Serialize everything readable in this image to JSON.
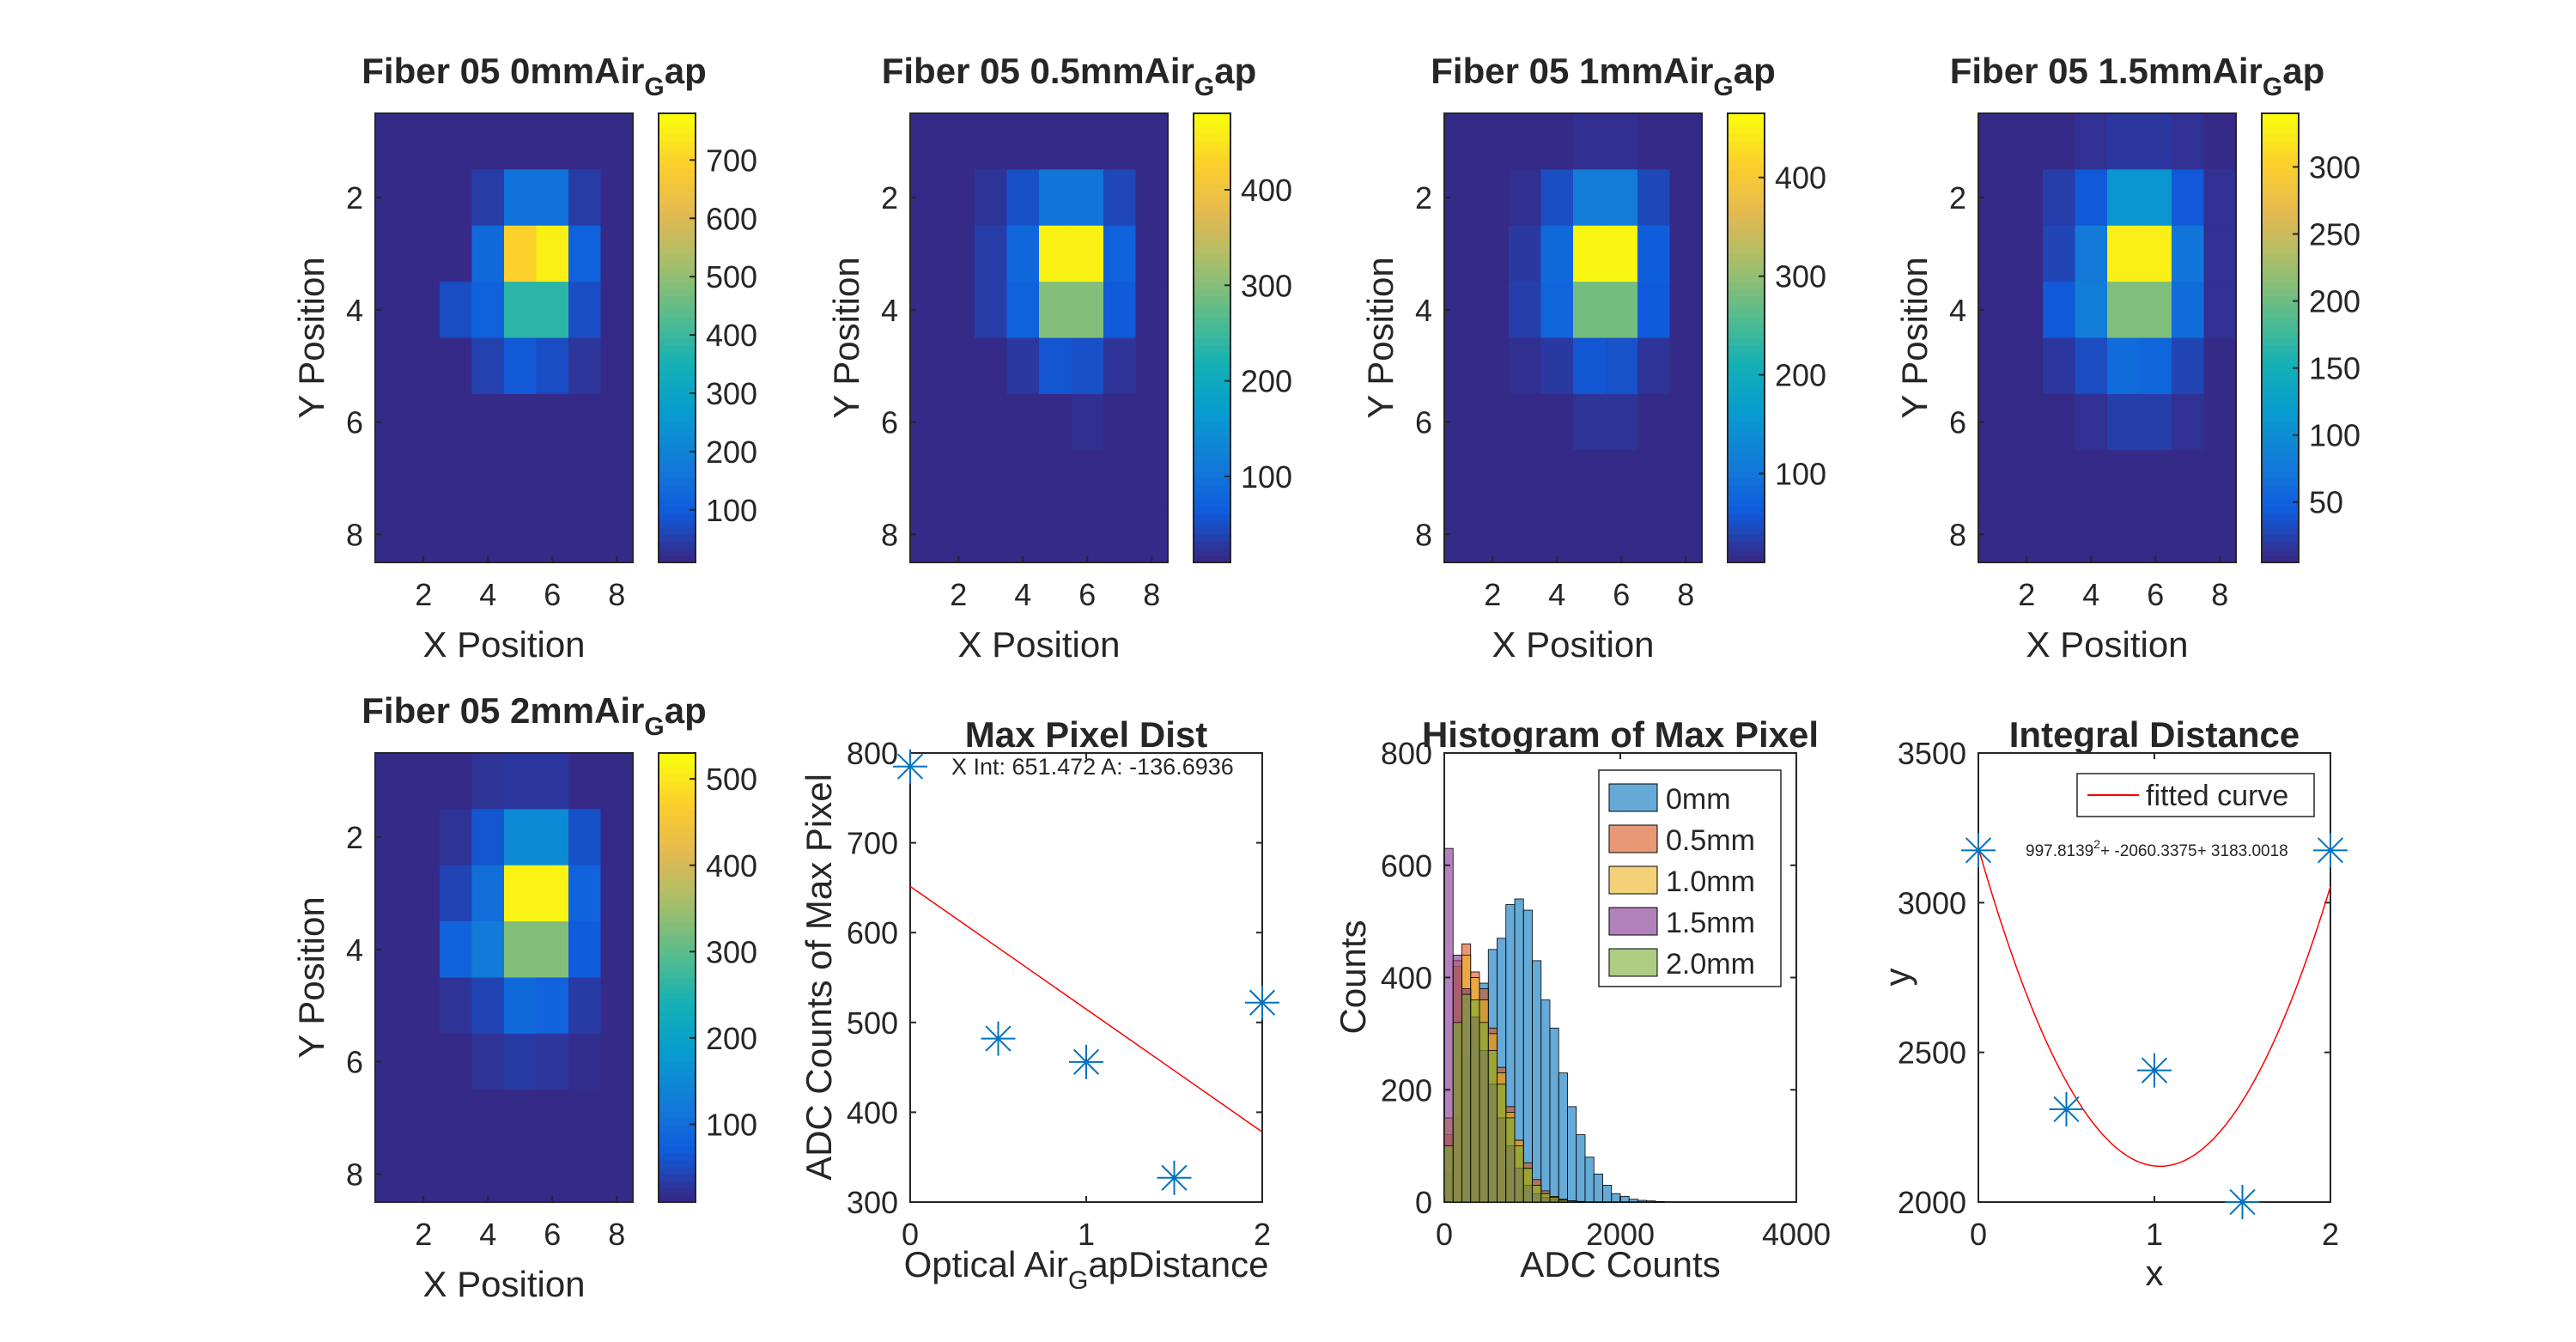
{
  "figure": {
    "heatmaps": [
      {
        "title_main": "Fiber 05 0mmAir",
        "title_sub": "G",
        "title_tail": "ap",
        "xlabel": "X Position",
        "ylabel": "Y Position",
        "xticks": [
          "2",
          "4",
          "6",
          "8"
        ],
        "yticks": [
          "2",
          "4",
          "6",
          "8"
        ],
        "cbar_min": 10,
        "cbar_max": 780,
        "cbar_ticks": [
          100,
          200,
          300,
          400,
          500,
          600,
          700
        ],
        "cbar_tick_labels": [
          "100",
          "200",
          "300",
          "400",
          "500",
          "600",
          "700"
        ],
        "grid": [
          [
            10,
            10,
            10,
            10,
            10,
            10,
            10,
            10
          ],
          [
            10,
            10,
            10,
            40,
            150,
            150,
            40,
            10
          ],
          [
            10,
            10,
            10,
            130,
            700,
            760,
            110,
            10
          ],
          [
            10,
            10,
            70,
            110,
            380,
            380,
            70,
            10
          ],
          [
            10,
            10,
            10,
            50,
            90,
            70,
            30,
            10
          ],
          [
            10,
            10,
            10,
            10,
            10,
            10,
            10,
            10
          ],
          [
            10,
            10,
            10,
            10,
            10,
            10,
            10,
            10
          ],
          [
            10,
            10,
            10,
            10,
            10,
            10,
            10,
            10
          ]
        ]
      },
      {
        "title_main": "Fiber 05 0.5mmAir",
        "title_sub": "G",
        "title_tail": "ap",
        "xlabel": "X Position",
        "ylabel": "Y Position",
        "xticks": [
          "2",
          "4",
          "6",
          "8"
        ],
        "yticks": [
          "2",
          "4",
          "6",
          "8"
        ],
        "cbar_min": 10,
        "cbar_max": 480,
        "cbar_ticks": [
          100,
          200,
          300,
          400
        ],
        "cbar_tick_labels": [
          "100",
          "200",
          "300",
          "400"
        ],
        "grid": [
          [
            10,
            10,
            10,
            10,
            10,
            10,
            10,
            10
          ],
          [
            10,
            10,
            20,
            50,
            100,
            100,
            40,
            10
          ],
          [
            10,
            10,
            30,
            80,
            470,
            470,
            70,
            10
          ],
          [
            10,
            10,
            30,
            70,
            300,
            300,
            60,
            10
          ],
          [
            10,
            10,
            10,
            25,
            55,
            50,
            20,
            10
          ],
          [
            10,
            10,
            10,
            10,
            10,
            15,
            10,
            10
          ],
          [
            10,
            10,
            10,
            10,
            10,
            10,
            10,
            10
          ],
          [
            10,
            10,
            10,
            10,
            10,
            10,
            10,
            10
          ]
        ]
      },
      {
        "title_main": "Fiber 05 1mmAir",
        "title_sub": "G",
        "title_tail": "ap",
        "xlabel": "X Position",
        "ylabel": "Y Position",
        "xticks": [
          "2",
          "4",
          "6",
          "8"
        ],
        "yticks": [
          "2",
          "4",
          "6",
          "8"
        ],
        "cbar_min": 10,
        "cbar_max": 465,
        "cbar_ticks": [
          100,
          200,
          300,
          400
        ],
        "cbar_tick_labels": [
          "100",
          "200",
          "300",
          "400"
        ],
        "grid": [
          [
            10,
            10,
            10,
            10,
            15,
            15,
            10,
            10
          ],
          [
            10,
            10,
            15,
            45,
            110,
            110,
            40,
            10
          ],
          [
            10,
            10,
            25,
            80,
            460,
            460,
            65,
            10
          ],
          [
            10,
            10,
            30,
            75,
            280,
            280,
            60,
            10
          ],
          [
            10,
            10,
            15,
            25,
            55,
            50,
            20,
            10
          ],
          [
            10,
            10,
            10,
            10,
            20,
            20,
            10,
            10
          ],
          [
            10,
            10,
            10,
            10,
            10,
            10,
            10,
            10
          ],
          [
            10,
            10,
            10,
            10,
            10,
            10,
            10,
            10
          ]
        ]
      },
      {
        "title_main": "Fiber 05 1.5mmAir",
        "title_sub": "G",
        "title_tail": "ap",
        "xlabel": "X Position",
        "ylabel": "Y Position",
        "xticks": [
          "2",
          "4",
          "6",
          "8"
        ],
        "yticks": [
          "2",
          "4",
          "6",
          "8"
        ],
        "cbar_min": 5,
        "cbar_max": 340,
        "cbar_ticks": [
          50,
          100,
          150,
          200,
          250,
          300
        ],
        "cbar_tick_labels": [
          "50",
          "100",
          "150",
          "200",
          "250",
          "300"
        ],
        "grid": [
          [
            5,
            5,
            5,
            10,
            15,
            15,
            10,
            5
          ],
          [
            5,
            5,
            20,
            40,
            110,
            110,
            40,
            10
          ],
          [
            5,
            5,
            25,
            75,
            330,
            330,
            70,
            10
          ],
          [
            5,
            5,
            40,
            80,
            210,
            210,
            60,
            10
          ],
          [
            5,
            5,
            15,
            30,
            60,
            55,
            25,
            5
          ],
          [
            5,
            5,
            5,
            10,
            20,
            20,
            10,
            5
          ],
          [
            5,
            5,
            5,
            5,
            5,
            5,
            5,
            5
          ],
          [
            5,
            5,
            5,
            5,
            5,
            5,
            5,
            5
          ]
        ]
      },
      {
        "title_main": "Fiber 05 2mmAir",
        "title_sub": "G",
        "title_tail": "ap",
        "xlabel": "X Position",
        "ylabel": "Y Position",
        "xticks": [
          "2",
          "4",
          "6",
          "8"
        ],
        "yticks": [
          "2",
          "4",
          "6",
          "8"
        ],
        "cbar_min": 10,
        "cbar_max": 530,
        "cbar_ticks": [
          100,
          200,
          300,
          400,
          500
        ],
        "cbar_tick_labels": [
          "100",
          "200",
          "300",
          "400",
          "500"
        ],
        "grid": [
          [
            10,
            10,
            10,
            20,
            25,
            25,
            10,
            10
          ],
          [
            10,
            10,
            20,
            60,
            150,
            150,
            55,
            10
          ],
          [
            10,
            10,
            40,
            100,
            520,
            520,
            80,
            10
          ],
          [
            10,
            10,
            80,
            120,
            330,
            330,
            70,
            10
          ],
          [
            10,
            10,
            20,
            40,
            90,
            80,
            30,
            10
          ],
          [
            10,
            10,
            10,
            20,
            30,
            25,
            15,
            10
          ],
          [
            10,
            10,
            10,
            10,
            10,
            10,
            10,
            10
          ],
          [
            10,
            10,
            10,
            10,
            10,
            10,
            10,
            10
          ]
        ]
      }
    ],
    "maxpix": {
      "title": "Max Pixel Dist",
      "xlabel_main": "Optical Air",
      "xlabel_sub": "G",
      "xlabel_tail": "apDistance",
      "ylabel": "ADC Counts of Max Pixel",
      "annotation": "X Int: 651.472 A: -136.6936",
      "xticks": [
        "0",
        "1",
        "2"
      ],
      "yticks": [
        "300",
        "400",
        "500",
        "600",
        "700",
        "800"
      ]
    },
    "hist": {
      "title": "Histogram of Max Pixel",
      "xlabel": "ADC Counts",
      "ylabel": "Counts",
      "xticks": [
        "0",
        "2000",
        "4000"
      ],
      "yticks": [
        "0",
        "200",
        "400",
        "600",
        "800"
      ],
      "legend": [
        "0mm",
        "0.5mm",
        "1.0mm",
        "1.5mm",
        "2.0mm"
      ]
    },
    "integral": {
      "title": "Integral Distance",
      "xlabel": "x",
      "ylabel": "y",
      "legend_label": "fitted curve",
      "equation": "997.8139",
      "equation_sup": "2",
      "equation_tail": "+ -2060.3375+ 3183.0018",
      "xticks": [
        "0",
        "1",
        "2"
      ],
      "yticks": [
        "2000",
        "2500",
        "3000",
        "3500"
      ]
    }
  },
  "colors": {
    "series_blue": "#0072bd",
    "fit_red": "#ff0000",
    "hist": [
      "#0072bd",
      "#d95319",
      "#edb120",
      "#7e2f8e",
      "#77ac30"
    ]
  },
  "chart_data": [
    {
      "type": "scatter",
      "title": "Max Pixel Dist",
      "xlabel": "Optical AirGapDistance",
      "ylabel": "ADC Counts of Max Pixel",
      "xlim": [
        0,
        2
      ],
      "ylim": [
        300,
        800
      ],
      "x": [
        0,
        0.5,
        1,
        1.5,
        2
      ],
      "y": [
        785,
        482,
        456,
        327,
        522
      ],
      "fit_line": {
        "intercept": 651.472,
        "slope": -136.6936
      },
      "annotation": "X Int: 651.472 A: -136.6936"
    },
    {
      "type": "bar",
      "title": "Histogram of Max Pixel",
      "xlabel": "ADC Counts",
      "ylabel": "Counts",
      "xlim": [
        0,
        4000
      ],
      "ylim": [
        0,
        800
      ],
      "bin_width": 100,
      "bin_start": 0,
      "series": [
        {
          "name": "0mm",
          "values": [
            50,
            150,
            260,
            330,
            390,
            450,
            470,
            530,
            540,
            520,
            430,
            360,
            310,
            230,
            170,
            120,
            80,
            50,
            30,
            15,
            10,
            5,
            3,
            2,
            1
          ]
        },
        {
          "name": "0.5mm",
          "values": [
            120,
            420,
            460,
            410,
            380,
            310,
            240,
            170,
            110,
            70,
            40,
            20,
            10,
            5,
            2,
            1,
            0,
            0,
            0,
            0,
            0,
            0,
            0,
            0,
            0
          ]
        },
        {
          "name": "1.0mm",
          "values": [
            150,
            430,
            440,
            400,
            360,
            300,
            230,
            160,
            110,
            60,
            30,
            15,
            8,
            4,
            2,
            1,
            0,
            0,
            0,
            0,
            0,
            0,
            0,
            0,
            0
          ]
        },
        {
          "name": "1.5mm",
          "values": [
            630,
            440,
            380,
            330,
            270,
            210,
            150,
            100,
            60,
            30,
            15,
            8,
            4,
            2,
            1,
            0,
            0,
            0,
            0,
            0,
            0,
            0,
            0,
            0,
            0
          ]
        },
        {
          "name": "2.0mm",
          "values": [
            100,
            320,
            370,
            360,
            320,
            270,
            210,
            150,
            100,
            60,
            30,
            15,
            8,
            4,
            2,
            1,
            0,
            0,
            0,
            0,
            0,
            0,
            0,
            0,
            0
          ]
        }
      ]
    },
    {
      "type": "scatter",
      "title": "Integral Distance",
      "xlabel": "x",
      "ylabel": "y",
      "xlim": [
        0,
        2
      ],
      "ylim": [
        2000,
        3500
      ],
      "x": [
        0,
        0.5,
        1,
        1.5,
        2
      ],
      "y": [
        3175,
        2310,
        2440,
        2000,
        3175
      ],
      "fit_curve": {
        "a": 997.8139,
        "b": -2060.3375,
        "c": 3183.0018
      },
      "legend": [
        "fitted curve"
      ]
    }
  ]
}
